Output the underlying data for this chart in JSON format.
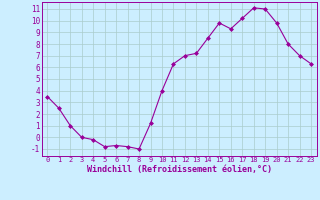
{
  "x": [
    0,
    1,
    2,
    3,
    4,
    5,
    6,
    7,
    8,
    9,
    10,
    11,
    12,
    13,
    14,
    15,
    16,
    17,
    18,
    19,
    20,
    21,
    22,
    23
  ],
  "y": [
    3.5,
    2.5,
    1.0,
    0.0,
    -0.2,
    -0.8,
    -0.7,
    -0.8,
    -1.0,
    1.2,
    4.0,
    6.3,
    7.0,
    7.2,
    8.5,
    9.8,
    9.3,
    10.2,
    11.1,
    11.0,
    9.8,
    8.0,
    7.0,
    6.3
  ],
  "line_color": "#990099",
  "marker": "D",
  "marker_size": 2.0,
  "bg_color": "#cceeff",
  "grid_color": "#aacccc",
  "xlabel": "Windchill (Refroidissement éolien,°C)",
  "ylabel_ticks": [
    -1,
    0,
    1,
    2,
    3,
    4,
    5,
    6,
    7,
    8,
    9,
    10,
    11
  ],
  "xlim": [
    -0.5,
    23.5
  ],
  "ylim": [
    -1.6,
    11.6
  ],
  "tick_color": "#990099",
  "tick_label_color": "#990099",
  "spine_color": "#990099",
  "font_color": "#990099",
  "xlabel_fontsize": 6.0,
  "ytick_fontsize": 5.5,
  "xtick_fontsize": 5.0
}
